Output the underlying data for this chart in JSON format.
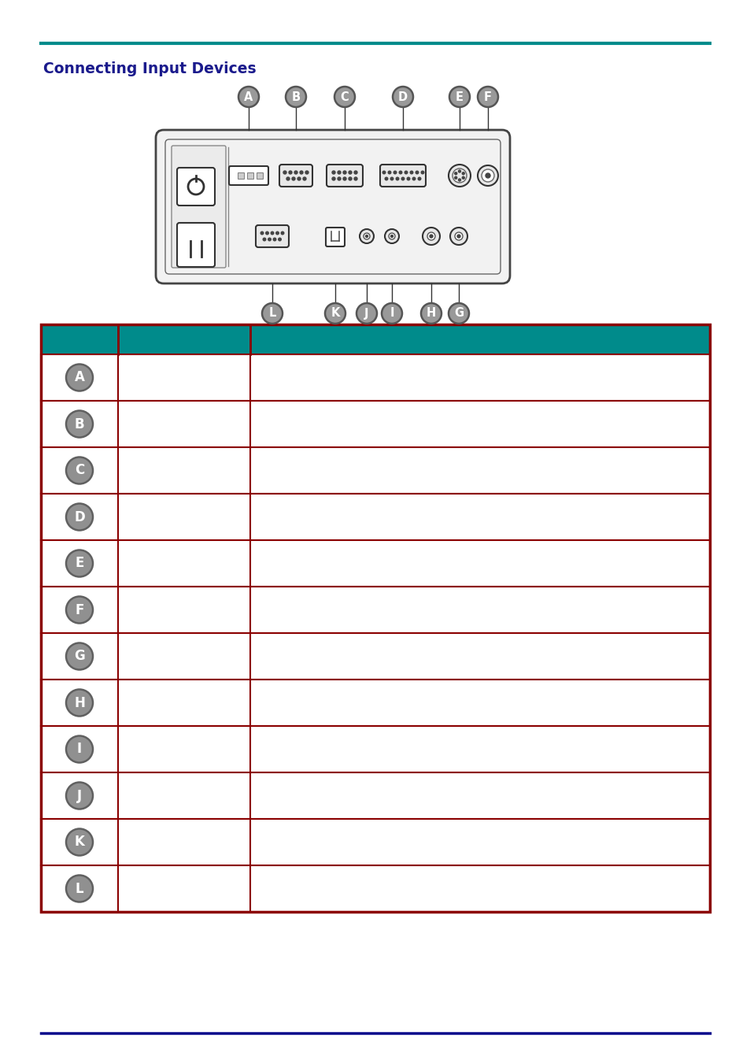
{
  "title": "Connecting Input Devices",
  "title_color": "#1a1a8c",
  "top_line_color": "#008b8b",
  "bottom_line_color": "#00008b",
  "table_header_bg": "#008b8b",
  "table_border_color": "#8b0000",
  "table_header_color": "#ffffff",
  "row_labels": [
    "A",
    "B",
    "C",
    "D",
    "E",
    "F",
    "G",
    "H",
    "I",
    "J",
    "K",
    "L"
  ],
  "bubble_bg": "#888888",
  "bubble_edge": "#555555",
  "bubble_text": "#ffffff"
}
